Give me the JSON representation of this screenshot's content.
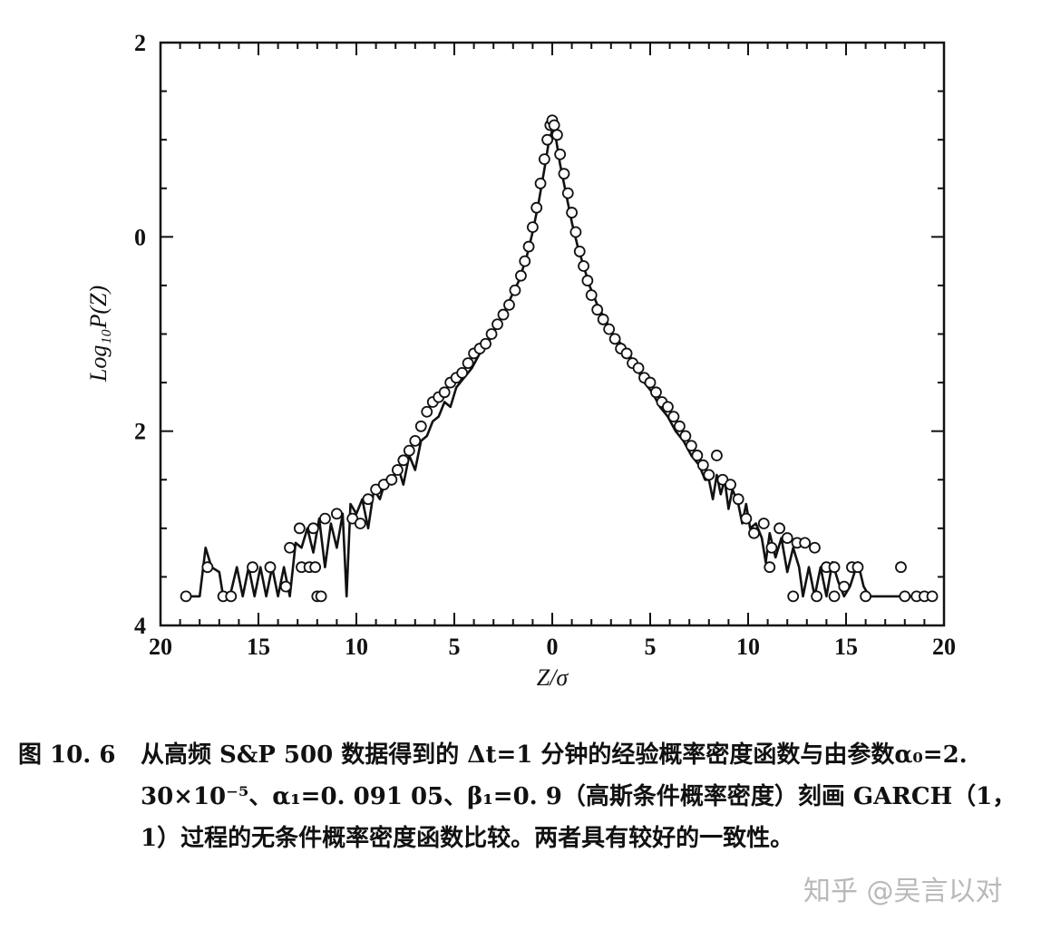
{
  "chart_data": {
    "type": "scatter",
    "xlabel": "Z/σ",
    "ylabel": "Log₁₀P(Z)",
    "xlim": [
      -20,
      20
    ],
    "ylim": [
      -4,
      2
    ],
    "x_ticks": [
      -20,
      -15,
      -10,
      -5,
      0,
      5,
      10,
      15,
      20
    ],
    "x_tick_labels": [
      "20",
      "15",
      "10",
      "5",
      "0",
      "5",
      "10",
      "15",
      "20"
    ],
    "y_ticks": [
      2,
      0,
      -2,
      -4
    ],
    "y_tick_labels": [
      "2",
      "0",
      "2",
      "4"
    ],
    "grid": false,
    "series": [
      {
        "style": "circles",
        "points": [
          [
            -18.7,
            -3.7
          ],
          [
            -17.6,
            -3.4
          ],
          [
            -16.8,
            -3.7
          ],
          [
            -16.4,
            -3.7
          ],
          [
            -15.3,
            -3.4
          ],
          [
            -14.4,
            -3.4
          ],
          [
            -13.6,
            -3.6
          ],
          [
            -13.4,
            -3.2
          ],
          [
            -12.8,
            -3.4
          ],
          [
            -12.4,
            -3.4
          ],
          [
            -12.1,
            -3.4
          ],
          [
            -12.0,
            -3.7
          ],
          [
            -11.8,
            -3.7
          ],
          [
            -12.9,
            -3.0
          ],
          [
            -12.2,
            -3.0
          ],
          [
            -11.6,
            -2.9
          ],
          [
            -11.0,
            -2.85
          ],
          [
            -10.2,
            -2.9
          ],
          [
            -9.8,
            -2.95
          ],
          [
            -9.4,
            -2.7
          ],
          [
            -9.0,
            -2.6
          ],
          [
            -8.6,
            -2.55
          ],
          [
            -8.2,
            -2.5
          ],
          [
            -7.9,
            -2.4
          ],
          [
            -7.6,
            -2.3
          ],
          [
            -7.3,
            -2.2
          ],
          [
            -7.0,
            -2.1
          ],
          [
            -6.7,
            -1.95
          ],
          [
            -6.4,
            -1.8
          ],
          [
            -6.1,
            -1.7
          ],
          [
            -5.8,
            -1.65
          ],
          [
            -5.5,
            -1.6
          ],
          [
            -5.2,
            -1.5
          ],
          [
            -4.9,
            -1.45
          ],
          [
            -4.6,
            -1.4
          ],
          [
            -4.3,
            -1.3
          ],
          [
            -4.0,
            -1.2
          ],
          [
            -3.7,
            -1.15
          ],
          [
            -3.4,
            -1.1
          ],
          [
            -3.1,
            -1.0
          ],
          [
            -2.8,
            -0.9
          ],
          [
            -2.5,
            -0.8
          ],
          [
            -2.2,
            -0.7
          ],
          [
            -1.9,
            -0.55
          ],
          [
            -1.6,
            -0.4
          ],
          [
            -1.4,
            -0.25
          ],
          [
            -1.2,
            -0.1
          ],
          [
            -1.0,
            0.1
          ],
          [
            -0.8,
            0.3
          ],
          [
            -0.6,
            0.55
          ],
          [
            -0.4,
            0.8
          ],
          [
            -0.25,
            1.0
          ],
          [
            -0.1,
            1.15
          ],
          [
            0.0,
            1.2
          ],
          [
            0.1,
            1.15
          ],
          [
            0.25,
            1.05
          ],
          [
            0.4,
            0.85
          ],
          [
            0.6,
            0.65
          ],
          [
            0.8,
            0.45
          ],
          [
            1.0,
            0.25
          ],
          [
            1.2,
            0.05
          ],
          [
            1.4,
            -0.15
          ],
          [
            1.6,
            -0.3
          ],
          [
            1.8,
            -0.45
          ],
          [
            2.0,
            -0.6
          ],
          [
            2.3,
            -0.75
          ],
          [
            2.6,
            -0.85
          ],
          [
            2.9,
            -0.95
          ],
          [
            3.2,
            -1.05
          ],
          [
            3.5,
            -1.15
          ],
          [
            3.8,
            -1.2
          ],
          [
            4.1,
            -1.3
          ],
          [
            4.4,
            -1.35
          ],
          [
            4.7,
            -1.45
          ],
          [
            5.0,
            -1.5
          ],
          [
            5.3,
            -1.6
          ],
          [
            5.6,
            -1.7
          ],
          [
            5.9,
            -1.75
          ],
          [
            6.2,
            -1.85
          ],
          [
            6.5,
            -1.95
          ],
          [
            6.8,
            -2.05
          ],
          [
            7.1,
            -2.15
          ],
          [
            7.4,
            -2.25
          ],
          [
            7.7,
            -2.35
          ],
          [
            8.0,
            -2.45
          ],
          [
            8.4,
            -2.25
          ],
          [
            8.7,
            -2.5
          ],
          [
            9.1,
            -2.55
          ],
          [
            9.5,
            -2.7
          ],
          [
            9.9,
            -2.9
          ],
          [
            10.3,
            -3.05
          ],
          [
            10.8,
            -2.95
          ],
          [
            11.2,
            -3.2
          ],
          [
            11.6,
            -3.0
          ],
          [
            12.0,
            -3.1
          ],
          [
            12.5,
            -3.15
          ],
          [
            12.9,
            -3.15
          ],
          [
            13.4,
            -3.2
          ],
          [
            11.1,
            -3.4
          ],
          [
            12.3,
            -3.7
          ],
          [
            13.5,
            -3.7
          ],
          [
            14.0,
            -3.4
          ],
          [
            14.4,
            -3.4
          ],
          [
            14.4,
            -3.7
          ],
          [
            14.9,
            -3.6
          ],
          [
            15.3,
            -3.4
          ],
          [
            15.6,
            -3.4
          ],
          [
            16.0,
            -3.7
          ],
          [
            17.8,
            -3.4
          ],
          [
            18.0,
            -3.7
          ],
          [
            18.6,
            -3.7
          ],
          [
            19.0,
            -3.7
          ],
          [
            19.4,
            -3.7
          ]
        ]
      },
      {
        "style": "line",
        "points": [
          [
            -18.7,
            -3.7
          ],
          [
            -18.0,
            -3.7
          ],
          [
            -17.7,
            -3.2
          ],
          [
            -17.4,
            -3.4
          ],
          [
            -17.0,
            -3.45
          ],
          [
            -16.8,
            -3.7
          ],
          [
            -16.4,
            -3.65
          ],
          [
            -16.1,
            -3.4
          ],
          [
            -15.8,
            -3.7
          ],
          [
            -15.5,
            -3.4
          ],
          [
            -15.2,
            -3.7
          ],
          [
            -14.9,
            -3.4
          ],
          [
            -14.6,
            -3.7
          ],
          [
            -14.3,
            -3.4
          ],
          [
            -14.0,
            -3.7
          ],
          [
            -13.7,
            -3.4
          ],
          [
            -13.4,
            -3.7
          ],
          [
            -13.1,
            -3.15
          ],
          [
            -12.8,
            -3.2
          ],
          [
            -12.5,
            -3.0
          ],
          [
            -12.2,
            -3.25
          ],
          [
            -11.9,
            -2.9
          ],
          [
            -11.6,
            -3.4
          ],
          [
            -11.3,
            -2.95
          ],
          [
            -11.0,
            -3.2
          ],
          [
            -10.7,
            -2.85
          ],
          [
            -10.5,
            -3.7
          ],
          [
            -10.3,
            -2.75
          ],
          [
            -10.0,
            -2.85
          ],
          [
            -9.7,
            -2.7
          ],
          [
            -9.4,
            -3.0
          ],
          [
            -9.1,
            -2.6
          ],
          [
            -8.8,
            -2.7
          ],
          [
            -8.5,
            -2.5
          ],
          [
            -8.2,
            -2.55
          ],
          [
            -7.9,
            -2.35
          ],
          [
            -7.6,
            -2.55
          ],
          [
            -7.3,
            -2.25
          ],
          [
            -7.0,
            -2.4
          ],
          [
            -6.7,
            -2.1
          ],
          [
            -6.4,
            -2.05
          ],
          [
            -6.1,
            -1.9
          ],
          [
            -5.8,
            -1.85
          ],
          [
            -5.5,
            -1.7
          ],
          [
            -5.2,
            -1.75
          ],
          [
            -4.9,
            -1.55
          ],
          [
            -4.5,
            -1.45
          ],
          [
            -4.1,
            -1.35
          ],
          [
            -3.7,
            -1.2
          ],
          [
            -3.3,
            -1.1
          ],
          [
            -2.9,
            -0.95
          ],
          [
            -2.5,
            -0.8
          ],
          [
            -2.1,
            -0.62
          ],
          [
            -1.7,
            -0.45
          ],
          [
            -1.3,
            -0.2
          ],
          [
            -1.0,
            0.05
          ],
          [
            -0.7,
            0.35
          ],
          [
            -0.4,
            0.7
          ],
          [
            -0.2,
            0.95
          ],
          [
            0.0,
            1.1
          ],
          [
            0.2,
            1.0
          ],
          [
            0.4,
            0.75
          ],
          [
            0.7,
            0.45
          ],
          [
            1.0,
            0.15
          ],
          [
            1.3,
            -0.1
          ],
          [
            1.6,
            -0.3
          ],
          [
            1.9,
            -0.5
          ],
          [
            2.3,
            -0.7
          ],
          [
            2.7,
            -0.85
          ],
          [
            3.1,
            -1.0
          ],
          [
            3.5,
            -1.1
          ],
          [
            3.9,
            -1.2
          ],
          [
            4.3,
            -1.35
          ],
          [
            4.7,
            -1.5
          ],
          [
            5.1,
            -1.6
          ],
          [
            5.5,
            -1.75
          ],
          [
            5.9,
            -1.85
          ],
          [
            6.3,
            -2.0
          ],
          [
            6.7,
            -2.1
          ],
          [
            7.1,
            -2.25
          ],
          [
            7.5,
            -2.35
          ],
          [
            7.8,
            -2.5
          ],
          [
            8.0,
            -2.5
          ],
          [
            8.2,
            -2.7
          ],
          [
            8.4,
            -2.45
          ],
          [
            8.6,
            -2.65
          ],
          [
            8.8,
            -2.5
          ],
          [
            9.0,
            -2.8
          ],
          [
            9.2,
            -2.6
          ],
          [
            9.5,
            -2.75
          ],
          [
            9.7,
            -2.95
          ],
          [
            9.9,
            -2.75
          ],
          [
            10.1,
            -3.0
          ],
          [
            10.4,
            -2.95
          ],
          [
            10.7,
            -3.1
          ],
          [
            10.9,
            -3.35
          ],
          [
            11.1,
            -3.05
          ],
          [
            11.4,
            -3.3
          ],
          [
            11.7,
            -3.1
          ],
          [
            12.0,
            -3.45
          ],
          [
            12.3,
            -3.2
          ],
          [
            12.6,
            -3.4
          ],
          [
            12.8,
            -3.7
          ],
          [
            13.1,
            -3.4
          ],
          [
            13.4,
            -3.7
          ],
          [
            13.7,
            -3.4
          ],
          [
            14.0,
            -3.7
          ],
          [
            14.3,
            -3.35
          ],
          [
            14.6,
            -3.55
          ],
          [
            14.9,
            -3.7
          ],
          [
            15.2,
            -3.6
          ],
          [
            15.6,
            -3.35
          ],
          [
            15.9,
            -3.6
          ],
          [
            16.2,
            -3.7
          ],
          [
            17.0,
            -3.7
          ],
          [
            17.8,
            -3.7
          ],
          [
            18.8,
            -3.7
          ],
          [
            19.6,
            -3.7
          ]
        ]
      }
    ]
  },
  "caption": {
    "figure_number": "图 10. 6",
    "text": "从高频 S&P 500 数据得到的 Δt=1 分钟的经验概率密度函数与由参数α₀=2. 30×10⁻⁵、α₁=0. 091 05、β₁=0. 9（高斯条件概率密度）刻画 GARCH（1，1）过程的无条件概率密度函数比较。两者具有较好的一致性。"
  },
  "watermark": "知乎 @吴言以对"
}
